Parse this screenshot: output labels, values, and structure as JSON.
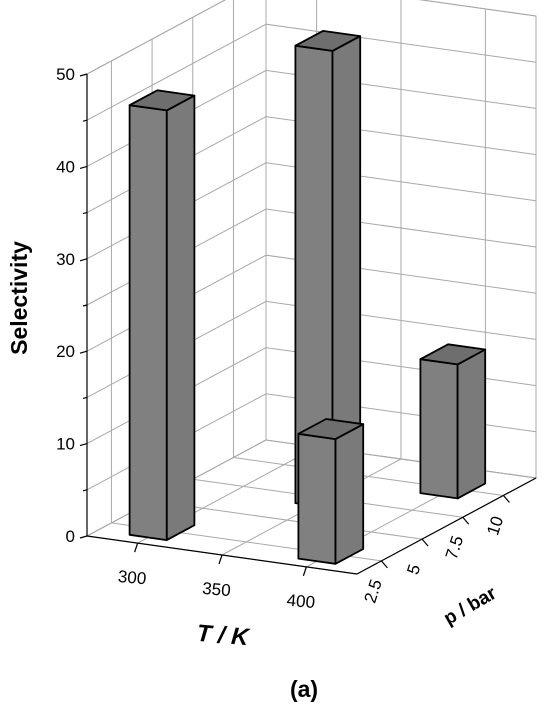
{
  "chart_data": {
    "type": "bar3d",
    "title": "",
    "caption": "(a)",
    "xlabel": "T / K",
    "ylabel": "p / bar",
    "zlabel": "Selectivity",
    "x_ticks": [
      "300",
      "350",
      "400"
    ],
    "y_ticks": [
      "2.5",
      "5",
      "7.5",
      "10"
    ],
    "z_ticks": [
      "0",
      "10",
      "20",
      "30",
      "40",
      "50"
    ],
    "zlim": [
      0,
      50
    ],
    "grid": true,
    "bars": [
      {
        "T": 300,
        "p": 2.5,
        "value": 46.5
      },
      {
        "T": 350,
        "p": 7.5,
        "value": 49.5
      },
      {
        "T": 400,
        "p": 2.5,
        "value": 13.5
      },
      {
        "T": 400,
        "p": 10,
        "value": 14.5
      }
    ],
    "colors": {
      "bar_front": "#808080",
      "bar_side": "#7a7a7a",
      "bar_top": "#6e6e6e",
      "grid": "#a8a8a8",
      "pane": "#ffffff"
    }
  }
}
